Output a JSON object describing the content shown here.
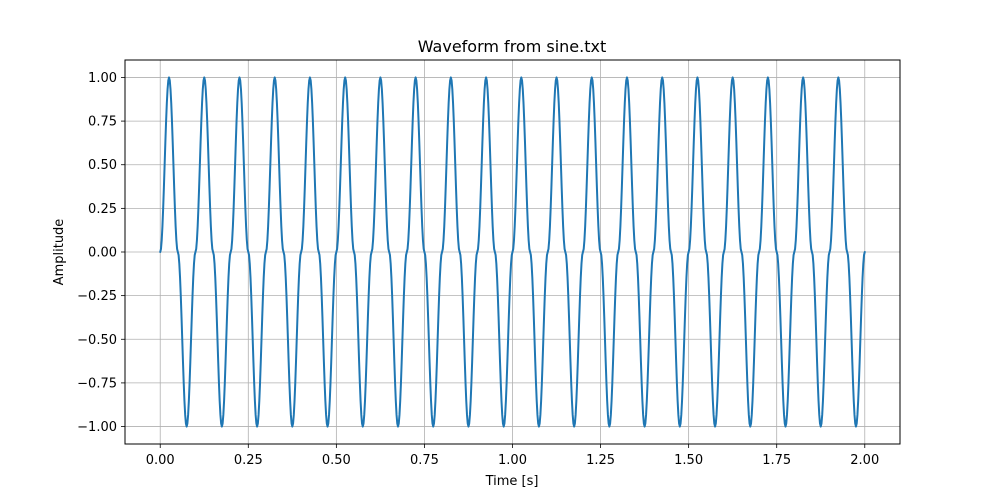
{
  "chart_data": {
    "type": "line",
    "title": "Waveform from sine.txt",
    "xlabel": "Time [s]",
    "ylabel": "Amplitude",
    "xlim": [
      -0.1,
      2.1
    ],
    "ylim": [
      -1.1,
      1.1
    ],
    "x_ticks": [
      0.0,
      0.25,
      0.5,
      0.75,
      1.0,
      1.25,
      1.5,
      1.75,
      2.0
    ],
    "x_tick_labels": [
      "0.00",
      "0.25",
      "0.50",
      "0.75",
      "1.00",
      "1.25",
      "1.50",
      "1.75",
      "2.00"
    ],
    "y_ticks": [
      -1.0,
      -0.75,
      -0.5,
      -0.25,
      0.0,
      0.25,
      0.5,
      0.75,
      1.0
    ],
    "y_tick_labels": [
      "−1.00",
      "−0.75",
      "−0.50",
      "−0.25",
      "0.00",
      "0.25",
      "0.50",
      "0.75",
      "1.00"
    ],
    "grid": true,
    "series": [
      {
        "color": "#1f77b4",
        "x": [
          0.0,
          0.025,
          0.05,
          0.075,
          0.1,
          0.125,
          0.15,
          0.175,
          0.2,
          0.225,
          0.25,
          0.275,
          0.3,
          0.325,
          0.35,
          0.375,
          0.4,
          0.425,
          0.45,
          0.475,
          0.5,
          0.525,
          0.55,
          0.575,
          0.6,
          0.625,
          0.65,
          0.675,
          0.7,
          0.725,
          0.75,
          0.775,
          0.8,
          0.825,
          0.85,
          0.875,
          0.9,
          0.925,
          0.95,
          0.975,
          1.0,
          1.025,
          1.05,
          1.075,
          1.1,
          1.125,
          1.15,
          1.175,
          1.2,
          1.225,
          1.25,
          1.275,
          1.3,
          1.325,
          1.35,
          1.375,
          1.4,
          1.425,
          1.45,
          1.475,
          1.5,
          1.525,
          1.55,
          1.575,
          1.6,
          1.625,
          1.65,
          1.675,
          1.7,
          1.725,
          1.75,
          1.775,
          1.8,
          1.825,
          1.85,
          1.875,
          1.9,
          1.925,
          1.95,
          1.975,
          2.0
        ],
        "y": [
          0,
          1,
          0,
          -1,
          0,
          1,
          0,
          -1,
          0,
          1,
          0,
          -1,
          0,
          1,
          0,
          -1,
          0,
          1,
          0,
          -1,
          0,
          1,
          0,
          -1,
          0,
          1,
          0,
          -1,
          0,
          1,
          0,
          -1,
          0,
          1,
          0,
          -1,
          0,
          1,
          0,
          -1,
          0,
          1,
          0,
          -1,
          0,
          1,
          0,
          -1,
          0,
          1,
          0,
          -1,
          0,
          1,
          0,
          -1,
          0,
          1,
          0,
          -1,
          0,
          1,
          0,
          -1,
          0,
          1,
          0,
          -1,
          0,
          1,
          0,
          -1,
          0,
          1,
          0,
          -1,
          0,
          1,
          0,
          -1,
          0
        ]
      }
    ]
  }
}
